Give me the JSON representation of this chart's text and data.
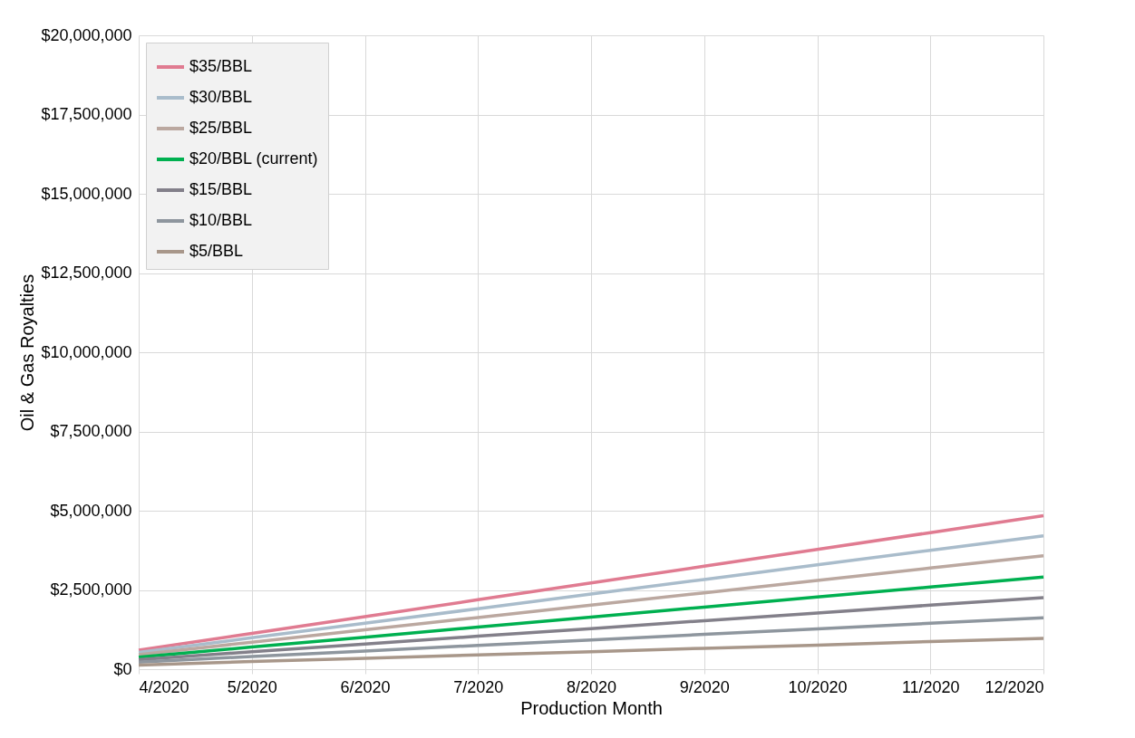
{
  "chart_data": {
    "type": "line",
    "xlabel": "Production Month",
    "ylabel": "Oil & Gas Royalties",
    "categories": [
      "4/2020",
      "5/2020",
      "6/2020",
      "7/2020",
      "8/2020",
      "9/2020",
      "10/2020",
      "11/2020",
      "12/2020"
    ],
    "series": [
      {
        "name": "$35/BBL",
        "color": "#e07b91",
        "values": [
          600000,
          1130000,
          1660000,
          2190000,
          2720000,
          3250000,
          3780000,
          4310000,
          4840000
        ]
      },
      {
        "name": "$30/BBL",
        "color": "#a9bccb",
        "values": [
          530000,
          990000,
          1450000,
          1910000,
          2370000,
          2830000,
          3290000,
          3750000,
          4210000
        ]
      },
      {
        "name": "$25/BBL",
        "color": "#bba8a0",
        "values": [
          460000,
          850000,
          1240000,
          1630000,
          2020000,
          2410000,
          2800000,
          3190000,
          3580000
        ]
      },
      {
        "name": "$20/BBL (current)",
        "color": "#00b050",
        "values": [
          380000,
          700000,
          1010000,
          1330000,
          1640000,
          1960000,
          2280000,
          2590000,
          2910000
        ]
      },
      {
        "name": "$15/BBL",
        "color": "#83808a",
        "values": [
          300000,
          550000,
          790000,
          1040000,
          1280000,
          1530000,
          1770000,
          2020000,
          2260000
        ]
      },
      {
        "name": "$10/BBL",
        "color": "#8e969e",
        "values": [
          220000,
          400000,
          570000,
          750000,
          920000,
          1100000,
          1270000,
          1450000,
          1620000
        ]
      },
      {
        "name": "$5/BBL",
        "color": "#a8978a",
        "values": [
          130000,
          240000,
          340000,
          450000,
          550000,
          660000,
          760000,
          870000,
          970000
        ]
      }
    ],
    "ylim": [
      0,
      20000000
    ],
    "yticks": [
      {
        "value": 0,
        "label": "$0"
      },
      {
        "value": 2500000,
        "label": "$2,500,000"
      },
      {
        "value": 5000000,
        "label": "$5,000,000"
      },
      {
        "value": 7500000,
        "label": "$7,500,000"
      },
      {
        "value": 10000000,
        "label": "$10,000,000"
      },
      {
        "value": 12500000,
        "label": "$12,500,000"
      },
      {
        "value": 15000000,
        "label": "$15,000,000"
      },
      {
        "value": 17500000,
        "label": "$17,500,000"
      },
      {
        "value": 20000000,
        "label": "$20,000,000"
      }
    ],
    "grid": true,
    "legend": "top left",
    "marker": "none",
    "line_style": "solid"
  }
}
